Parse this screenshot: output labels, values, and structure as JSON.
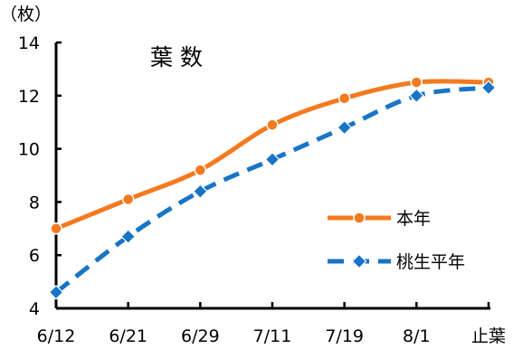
{
  "chart_data": {
    "type": "line",
    "title": "葉 数",
    "ylabel": "（枚）",
    "xlabel": "",
    "categories": [
      "6/12",
      "6/21",
      "6/29",
      "7/11",
      "7/19",
      "8/1",
      "止葉"
    ],
    "ylim": [
      4,
      14
    ],
    "yticks": [
      4,
      6,
      8,
      10,
      12,
      14
    ],
    "grid": false,
    "legend_position": "right",
    "series": [
      {
        "name": "本年",
        "values": [
          7.0,
          8.1,
          9.2,
          10.9,
          11.9,
          12.5,
          12.5
        ],
        "color": "#F47A20",
        "style": "solid",
        "marker": "circle"
      },
      {
        "name": "桃生平年",
        "values": [
          4.6,
          6.7,
          8.4,
          9.6,
          10.8,
          12.0,
          12.3
        ],
        "color": "#1874C6",
        "style": "dashed",
        "marker": "diamond"
      }
    ]
  }
}
